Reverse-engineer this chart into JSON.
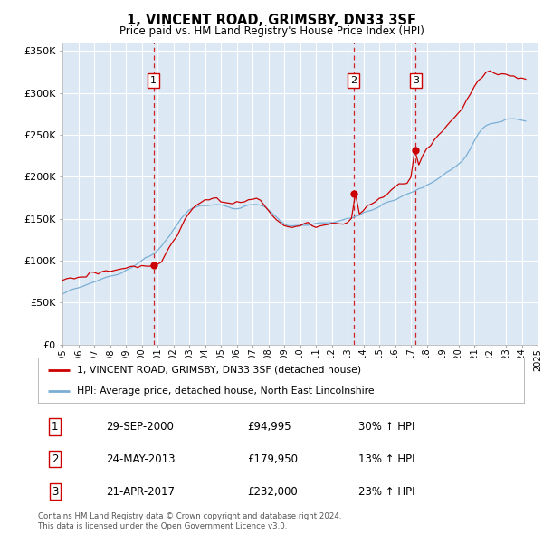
{
  "title": "1, VINCENT ROAD, GRIMSBY, DN33 3SF",
  "subtitle": "Price paid vs. HM Land Registry's House Price Index (HPI)",
  "ylim": [
    0,
    360000
  ],
  "yticks": [
    0,
    50000,
    100000,
    150000,
    200000,
    250000,
    300000,
    350000
  ],
  "plot_bg": "#dce9f5",
  "red_color": "#cc0000",
  "blue_color": "#7aaed4",
  "sale_dates_num": [
    2000.75,
    2013.39,
    2017.31
  ],
  "sale_prices": [
    94995,
    179950,
    232000
  ],
  "sale_labels": [
    "1",
    "2",
    "3"
  ],
  "legend_red": "1, VINCENT ROAD, GRIMSBY, DN33 3SF (detached house)",
  "legend_blue": "HPI: Average price, detached house, North East Lincolnshire",
  "table_rows": [
    [
      "1",
      "29-SEP-2000",
      "£94,995",
      "30% ↑ HPI"
    ],
    [
      "2",
      "24-MAY-2013",
      "£179,950",
      "13% ↑ HPI"
    ],
    [
      "3",
      "21-APR-2017",
      "£232,000",
      "23% ↑ HPI"
    ]
  ],
  "footer": "Contains HM Land Registry data © Crown copyright and database right 2024.\nThis data is licensed under the Open Government Licence v3.0.",
  "xmin": 1995,
  "xmax": 2025,
  "hpi_seed": 42,
  "blue_base": [
    60000,
    62000,
    64000,
    65500,
    67000,
    68500,
    70000,
    72000,
    74000,
    76500,
    78500,
    80500,
    82500,
    84000,
    85500,
    87000,
    89000,
    91500,
    94000,
    97000,
    100000,
    103000,
    106000,
    109000,
    113000,
    118000,
    124000,
    130000,
    137000,
    144000,
    150000,
    155000,
    160000,
    163000,
    165000,
    166000,
    167000,
    167500,
    168000,
    167000,
    166000,
    165000,
    164000,
    163000,
    163000,
    164000,
    165000,
    166000,
    167000,
    167500,
    167000,
    165000,
    161000,
    156000,
    151000,
    147000,
    144000,
    142000,
    141000,
    141500,
    142000,
    143000,
    143500,
    144000,
    144000,
    144000,
    144000,
    144500,
    145000,
    146000,
    147000,
    148000,
    149000,
    151000,
    153000,
    155000,
    157000,
    159000,
    161000,
    163000,
    165000,
    167000,
    169000,
    171000,
    173000,
    175000,
    177000,
    179000,
    181000,
    183000,
    185000,
    187000,
    190000,
    193000,
    196000,
    199000,
    202000,
    205000,
    208000,
    212000,
    216000,
    220000,
    226000,
    234000,
    243000,
    250000,
    256000,
    260000,
    263000,
    265000,
    266000,
    267000,
    267500,
    268000,
    268000,
    268500,
    268000,
    267000
  ],
  "red_base": [
    75000,
    76000,
    77500,
    78500,
    79500,
    80500,
    81500,
    83000,
    84500,
    86000,
    87500,
    88500,
    89500,
    90000,
    90500,
    91000,
    91500,
    92000,
    92500,
    93000,
    93500,
    94000,
    94500,
    94995,
    96000,
    100000,
    107000,
    115000,
    124000,
    133000,
    141000,
    149000,
    156000,
    162000,
    167000,
    170000,
    172000,
    173000,
    173000,
    172000,
    171000,
    170000,
    169000,
    168000,
    168000,
    169000,
    170000,
    171000,
    171500,
    171000,
    170000,
    167000,
    162000,
    156000,
    150000,
    145000,
    141000,
    139000,
    138500,
    139000,
    140000,
    141000,
    141500,
    142000,
    142000,
    142000,
    142000,
    142500,
    143000,
    144000,
    145000,
    146500,
    148000,
    149950,
    153000,
    157000,
    161000,
    165000,
    168000,
    171000,
    174000,
    177000,
    180000,
    183000,
    186000,
    189000,
    192000,
    195000,
    200000,
    206000,
    213000,
    220000,
    228000,
    235000,
    242000,
    248000,
    254000,
    260000,
    266000,
    272000,
    277000,
    282000,
    288000,
    298000,
    309000,
    316000,
    321000,
    324000,
    325000,
    325000,
    324000,
    323000,
    322500,
    321000,
    320000,
    318000,
    316000,
    313000
  ]
}
